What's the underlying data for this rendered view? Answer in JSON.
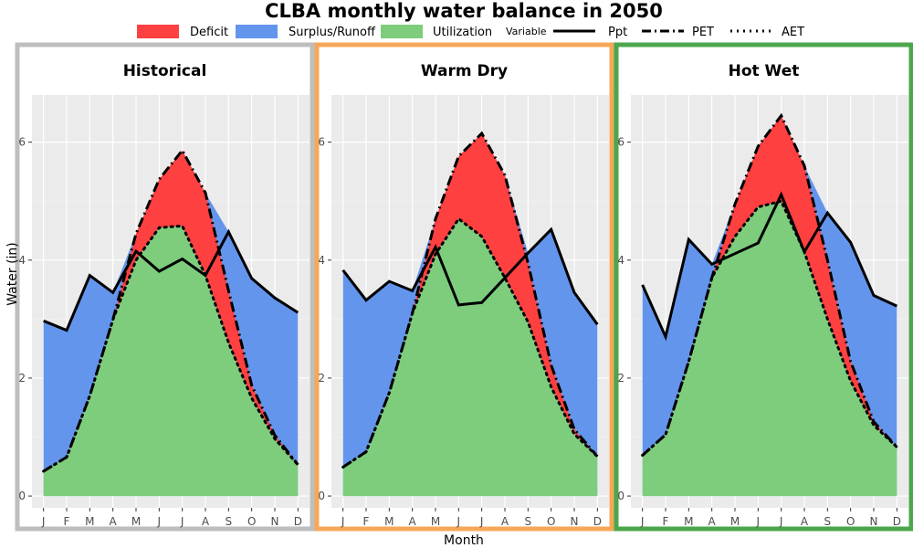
{
  "chart_data": {
    "type": "area",
    "title": "CLBA monthly water balance in 2050",
    "xlabel": "Month",
    "ylabel": "Water (in)",
    "ylim": [
      -0.2,
      6.8
    ],
    "yticks": [
      0,
      2,
      4,
      6
    ],
    "categories": [
      "J",
      "F",
      "M",
      "A",
      "M",
      "J",
      "J",
      "A",
      "S",
      "O",
      "N",
      "D"
    ],
    "legend": {
      "fill_items": [
        {
          "label": "Deficit",
          "color": "#ff4040"
        },
        {
          "label": "Surplus/Runoff",
          "color": "#6495ed"
        },
        {
          "label": "Utilization",
          "color": "#7dcd7d"
        }
      ],
      "variable_title": "Variable",
      "line_items": [
        {
          "label": "Ppt",
          "style": "solid"
        },
        {
          "label": "PET",
          "style": "dashdot"
        },
        {
          "label": "AET",
          "style": "dotted"
        }
      ]
    },
    "panels": [
      {
        "title": "Historical",
        "border_color": "#bebebe",
        "ppt": [
          2.97,
          2.81,
          3.74,
          3.45,
          4.15,
          3.81,
          4.02,
          3.74,
          4.48,
          3.69,
          3.36,
          3.11
        ],
        "pet": [
          0.42,
          0.66,
          1.7,
          2.99,
          4.45,
          5.37,
          5.86,
          5.14,
          3.48,
          1.88,
          1.03,
          0.53
        ],
        "aet": [
          0.42,
          0.66,
          1.7,
          2.99,
          4.0,
          4.55,
          4.58,
          3.74,
          2.6,
          1.66,
          0.97,
          0.53
        ]
      },
      {
        "title": "Warm Dry",
        "border_color": "#f5a85a",
        "ppt": [
          3.83,
          3.32,
          3.64,
          3.48,
          4.22,
          3.24,
          3.28,
          3.7,
          4.12,
          4.52,
          3.45,
          2.91
        ],
        "pet": [
          0.49,
          0.75,
          1.75,
          3.1,
          4.7,
          5.76,
          6.15,
          5.44,
          3.95,
          2.22,
          1.13,
          0.67
        ],
        "aet": [
          0.49,
          0.75,
          1.75,
          3.1,
          4.1,
          4.7,
          4.4,
          3.7,
          2.95,
          1.85,
          1.05,
          0.67
        ]
      },
      {
        "title": "Hot Wet",
        "border_color": "#4ca64c",
        "ppt": [
          3.58,
          2.7,
          4.35,
          3.93,
          4.11,
          4.29,
          5.11,
          4.14,
          4.8,
          4.3,
          3.4,
          3.22
        ],
        "pet": [
          0.69,
          1.04,
          2.28,
          3.7,
          4.95,
          5.93,
          6.45,
          5.6,
          4.0,
          2.28,
          1.26,
          0.83
        ],
        "aet": [
          0.69,
          1.04,
          2.28,
          3.7,
          4.4,
          4.9,
          5.0,
          4.14,
          3.0,
          1.95,
          1.2,
          0.83
        ]
      }
    ]
  }
}
